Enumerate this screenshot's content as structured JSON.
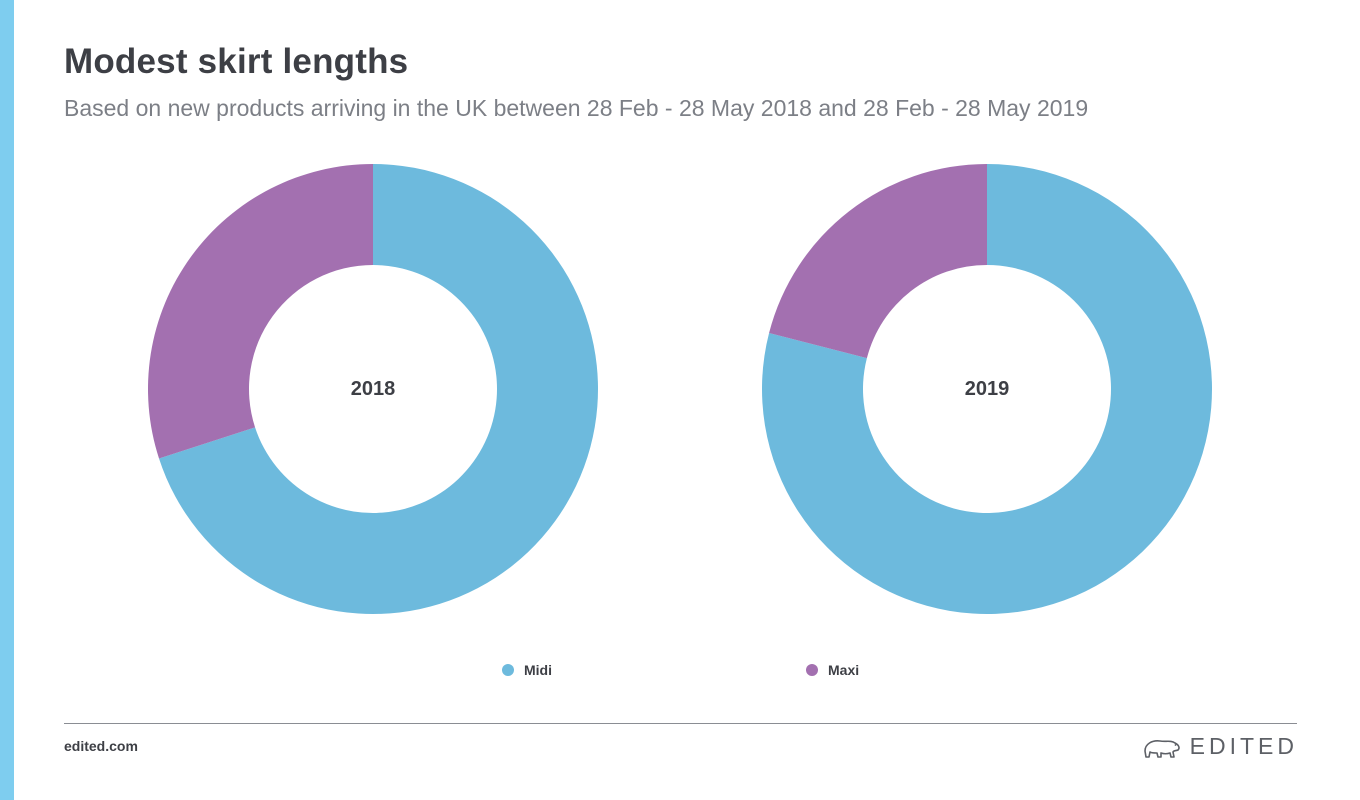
{
  "header": {
    "title": "Modest skirt lengths",
    "subtitle": "Based on new products arriving in the UK between 28 Feb - 28 May 2018 and 28 Feb - 28 May 2019"
  },
  "colors": {
    "accent_bar": "#7ecdef",
    "midi": "#6dbadd",
    "maxi": "#a370b0"
  },
  "chart_data": [
    {
      "type": "pie",
      "variant": "donut",
      "center_label": "2018",
      "categories": [
        "Midi",
        "Maxi"
      ],
      "values": [
        70,
        30
      ]
    },
    {
      "type": "pie",
      "variant": "donut",
      "center_label": "2019",
      "categories": [
        "Midi",
        "Maxi"
      ],
      "values": [
        79,
        21
      ]
    }
  ],
  "legend": {
    "placement": "bottom-center",
    "items": [
      {
        "label": "Midi",
        "color": "#6dbadd"
      },
      {
        "label": "Maxi",
        "color": "#a370b0"
      }
    ]
  },
  "footer": {
    "site": "edited.com",
    "brand": "EDITED",
    "brand_icon": "polar-bear-icon"
  }
}
